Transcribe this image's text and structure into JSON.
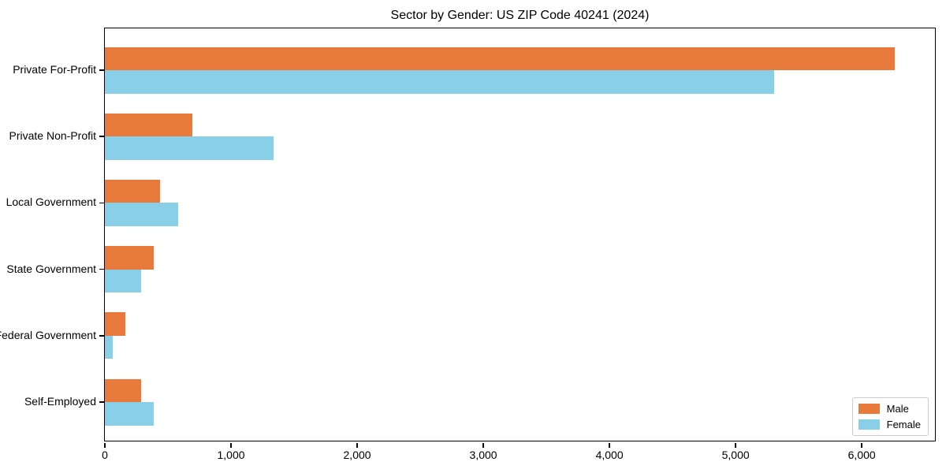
{
  "title": "Sector by Gender: US ZIP Code 40241 (2024)",
  "legend": {
    "position": "lower right",
    "items": [
      {
        "label": "Male",
        "color": "#E87B3C"
      },
      {
        "label": "Female",
        "color": "#89CFE8"
      }
    ]
  },
  "chart_data": {
    "type": "bar",
    "orientation": "horizontal",
    "title": "Sector by Gender: US ZIP Code 40241 (2024)",
    "categories": [
      "Private For-Profit",
      "Private Non-Profit",
      "Local Government",
      "State Government",
      "Federal Government",
      "Self-Employed"
    ],
    "series": [
      {
        "name": "Male",
        "color": "#E87B3C",
        "values": [
          6260,
          695,
          440,
          390,
          160,
          290
        ]
      },
      {
        "name": "Female",
        "color": "#89CFE8",
        "values": [
          5305,
          1335,
          580,
          285,
          65,
          390
        ]
      }
    ],
    "xlabel": "",
    "ylabel": "",
    "xlim": [
      0,
      6580
    ],
    "xticks": [
      0,
      1000,
      2000,
      3000,
      4000,
      5000,
      6000
    ],
    "xtick_labels": [
      "0",
      "1,000",
      "2,000",
      "3,000",
      "4,000",
      "5,000",
      "6,000"
    ],
    "grid": false,
    "legend_position": "lower right",
    "bar_group_order": "male_above_female"
  }
}
